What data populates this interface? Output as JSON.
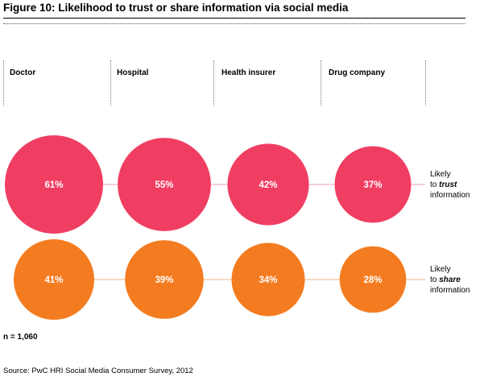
{
  "title": "Figure 10:  Likelihood to trust or share information via social media",
  "columns": [
    "Doctor",
    "Hospital",
    "Health insurer",
    "Drug company"
  ],
  "rows": [
    {
      "label_pre": "Likely",
      "label_to": "to",
      "label_em": "trust",
      "label_post": "information"
    },
    {
      "label_pre": "Likely",
      "label_to": "to",
      "label_em": "share",
      "label_post": "information"
    }
  ],
  "note": "n = 1,060",
  "source": "Source: PwC HRI Social Media Consumer Survey, 2012",
  "colors": {
    "trust": "#f03e62",
    "share": "#f47c20",
    "trust_line": "#f6a0b2",
    "share_line": "#f7b27c"
  },
  "chart_data": {
    "type": "bubble",
    "categories": [
      "Doctor",
      "Hospital",
      "Health insurer",
      "Drug company"
    ],
    "series": [
      {
        "name": "Likely to trust information",
        "values": [
          61,
          55,
          42,
          37
        ]
      },
      {
        "name": "Likely to share information",
        "values": [
          41,
          39,
          34,
          28
        ]
      }
    ],
    "value_labels": [
      [
        "61%",
        "55%",
        "42%",
        "37%"
      ],
      [
        "41%",
        "39%",
        "34%",
        "28%"
      ]
    ],
    "unit": "%"
  }
}
